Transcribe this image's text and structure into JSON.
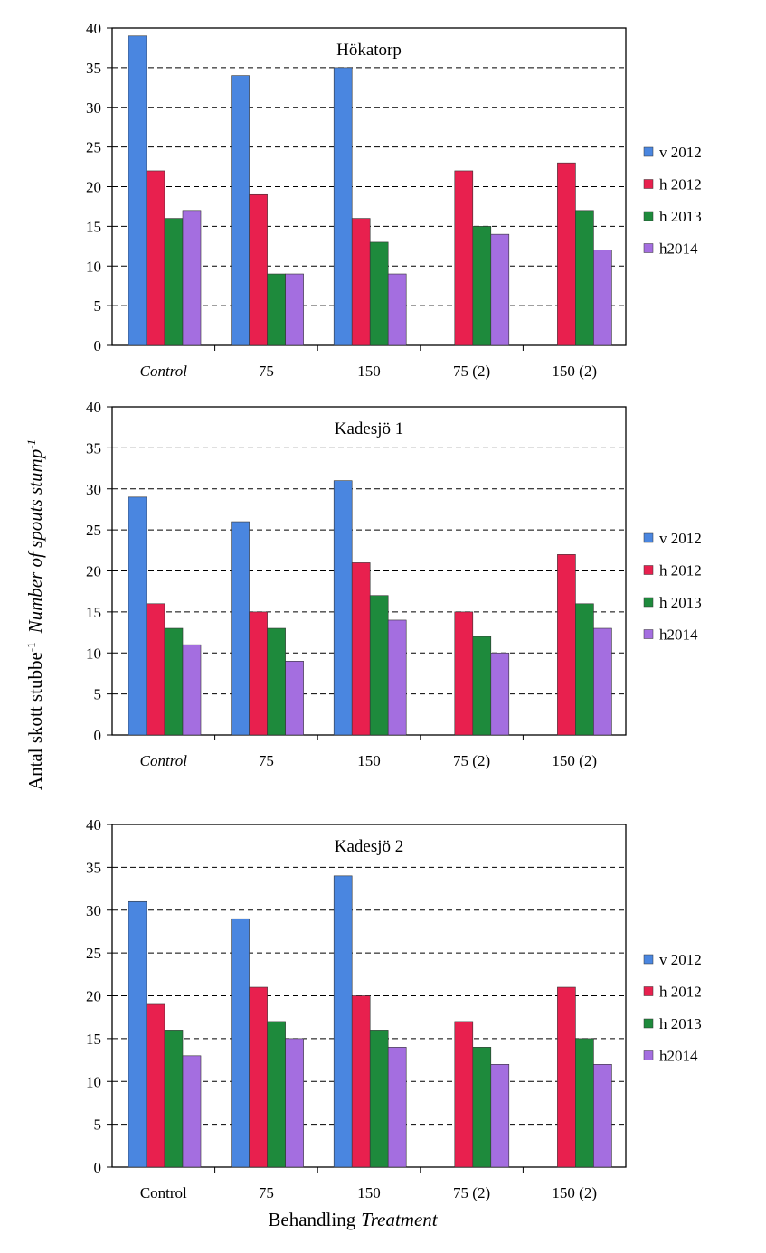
{
  "chart_data": [
    {
      "type": "bar",
      "title": "Hökatorp",
      "categories": [
        "Control",
        "75",
        "150",
        "75 (2)",
        "150 (2)"
      ],
      "category_italic": [
        true,
        false,
        false,
        false,
        false
      ],
      "ylim": [
        0,
        40
      ],
      "yticks": [
        0,
        5,
        10,
        15,
        20,
        25,
        30,
        35,
        40
      ],
      "grid": "dashed horizontal",
      "legend": "right",
      "series": [
        {
          "name": "v 2012",
          "color": "#4a86e0",
          "values": [
            39,
            34,
            35,
            null,
            null
          ]
        },
        {
          "name": "h 2012",
          "color": "#e8204e",
          "values": [
            22,
            19,
            16,
            22,
            23
          ]
        },
        {
          "name": "h 2013",
          "color": "#1e8a3c",
          "values": [
            16,
            9,
            13,
            15,
            17
          ]
        },
        {
          "name": "h2014",
          "color": "#a46ee0",
          "values": [
            17,
            9,
            9,
            14,
            12
          ]
        }
      ]
    },
    {
      "type": "bar",
      "title": "Kadesjö 1",
      "categories": [
        "Control",
        "75",
        "150",
        "75 (2)",
        "150 (2)"
      ],
      "category_italic": [
        true,
        false,
        false,
        false,
        false
      ],
      "ylim": [
        0,
        40
      ],
      "yticks": [
        0,
        5,
        10,
        15,
        20,
        25,
        30,
        35,
        40
      ],
      "grid": "dashed horizontal",
      "legend": "right",
      "series": [
        {
          "name": "v 2012",
          "color": "#4a86e0",
          "values": [
            29,
            26,
            31,
            null,
            null
          ]
        },
        {
          "name": "h 2012",
          "color": "#e8204e",
          "values": [
            16,
            15,
            21,
            15,
            22
          ]
        },
        {
          "name": "h 2013",
          "color": "#1e8a3c",
          "values": [
            13,
            13,
            17,
            12,
            16
          ]
        },
        {
          "name": "h2014",
          "color": "#a46ee0",
          "values": [
            11,
            9,
            14,
            10,
            13
          ]
        }
      ]
    },
    {
      "type": "bar",
      "title": "Kadesjö 2",
      "categories": [
        "Control",
        "75",
        "150",
        "75 (2)",
        "150 (2)"
      ],
      "category_italic": [
        false,
        false,
        false,
        false,
        false
      ],
      "ylim": [
        0,
        40
      ],
      "yticks": [
        0,
        5,
        10,
        15,
        20,
        25,
        30,
        35,
        40
      ],
      "grid": "dashed horizontal",
      "legend": "right",
      "series": [
        {
          "name": "v 2012",
          "color": "#4a86e0",
          "values": [
            31,
            29,
            34,
            null,
            null
          ]
        },
        {
          "name": "h 2012",
          "color": "#e8204e",
          "values": [
            19,
            21,
            20,
            17,
            21
          ]
        },
        {
          "name": "h 2013",
          "color": "#1e8a3c",
          "values": [
            16,
            17,
            16,
            14,
            15
          ]
        },
        {
          "name": "h2014",
          "color": "#a46ee0",
          "values": [
            13,
            15,
            14,
            12,
            12
          ]
        }
      ]
    }
  ],
  "shared": {
    "ylabel": "Antal skott stubbe",
    "ylabel_sup": "-1",
    "ylabel_italic": "Number of spouts stump",
    "ylabel_italic_sup": "-1",
    "xlabel": "Behandling",
    "xlabel_italic": "Treatment"
  }
}
